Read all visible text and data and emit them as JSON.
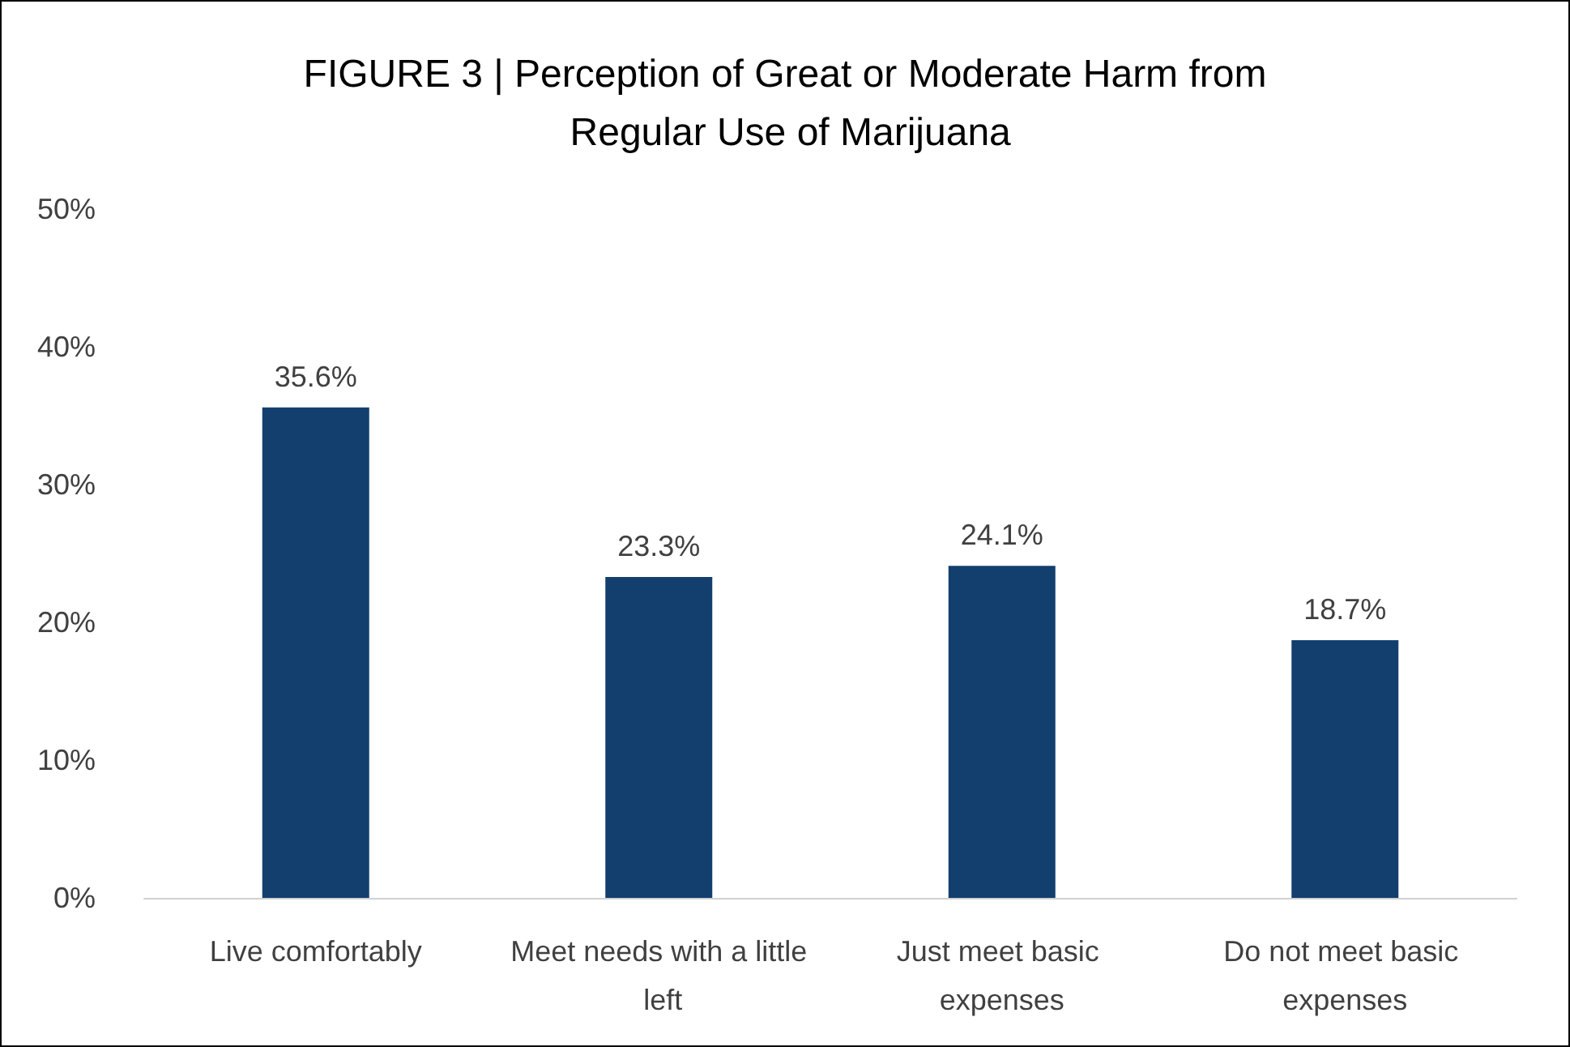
{
  "chart_data": {
    "type": "bar",
    "title": "FIGURE 3 | Perception of Great or Moderate Harm from Regular Use of Marijuana",
    "categories": [
      "Live comfortably",
      "Meet needs with a little left",
      "Just meet basic expenses",
      "Do not meet basic expenses"
    ],
    "values": [
      35.6,
      23.3,
      24.1,
      18.7
    ],
    "value_labels": [
      "35.6%",
      "23.3%",
      "24.1%",
      "18.7%"
    ],
    "color": "#133f6e",
    "ylim": [
      0,
      50
    ],
    "yticks": [
      {
        "value": 0,
        "label": "0%"
      },
      {
        "value": 10,
        "label": "10%"
      },
      {
        "value": 20,
        "label": "20%"
      },
      {
        "value": 30,
        "label": "30%"
      },
      {
        "value": 40,
        "label": "40%"
      },
      {
        "value": 50,
        "label": "50%"
      }
    ],
    "grid": false
  }
}
